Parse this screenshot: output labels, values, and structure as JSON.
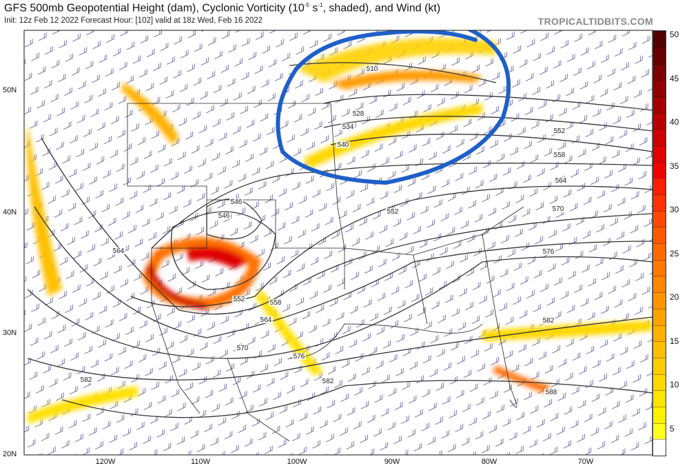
{
  "header": {
    "title_pre": "GFS 500mb Geopotential Height (dam), Cyclonic Vorticity (10",
    "title_exp1": "-5",
    "title_mid": " s",
    "title_exp2": "-1",
    "title_post": ", shaded), and Wind (kt)",
    "subtitle": "Init: 12z Feb 12 2022   Forecast Hour: [102]   valid at 18z Wed, Feb 16 2022",
    "brand": "TROPICALTIDBITS.COM"
  },
  "map": {
    "latitude_labels": [
      "50N",
      "40N",
      "30N",
      "20N"
    ],
    "longitude_labels": [
      "120W",
      "110W",
      "100W",
      "90W",
      "80W",
      "70W"
    ],
    "contour_labels": [
      "510",
      "528",
      "534",
      "540",
      "546",
      "546",
      "552",
      "552",
      "552",
      "558",
      "558",
      "564",
      "564",
      "564",
      "570",
      "570",
      "576",
      "576",
      "582",
      "582",
      "582",
      "588"
    ],
    "annotation": "hand-drawn blue circle around Great Lakes / upper Midwest",
    "annotation_color": "#1f5fc8"
  },
  "colorbar": {
    "ticks": [
      "5",
      "10",
      "15",
      "20",
      "25",
      "30",
      "35",
      "40",
      "45",
      "50"
    ],
    "range": [
      2,
      50
    ],
    "colors": [
      "#ffffff",
      "#ffff20",
      "#fff000",
      "#ffe400",
      "#ffd800",
      "#ffcc00",
      "#ffbf00",
      "#ffb000",
      "#ffa200",
      "#ff9400",
      "#ff8600",
      "#ff7800",
      "#ff6a00",
      "#ff5a00",
      "#ff4800",
      "#ff3200",
      "#ff1e00",
      "#f00000",
      "#e00000",
      "#cc0000",
      "#b80000",
      "#a40000",
      "#900000",
      "#7c0000",
      "#680000",
      "#540000"
    ]
  }
}
